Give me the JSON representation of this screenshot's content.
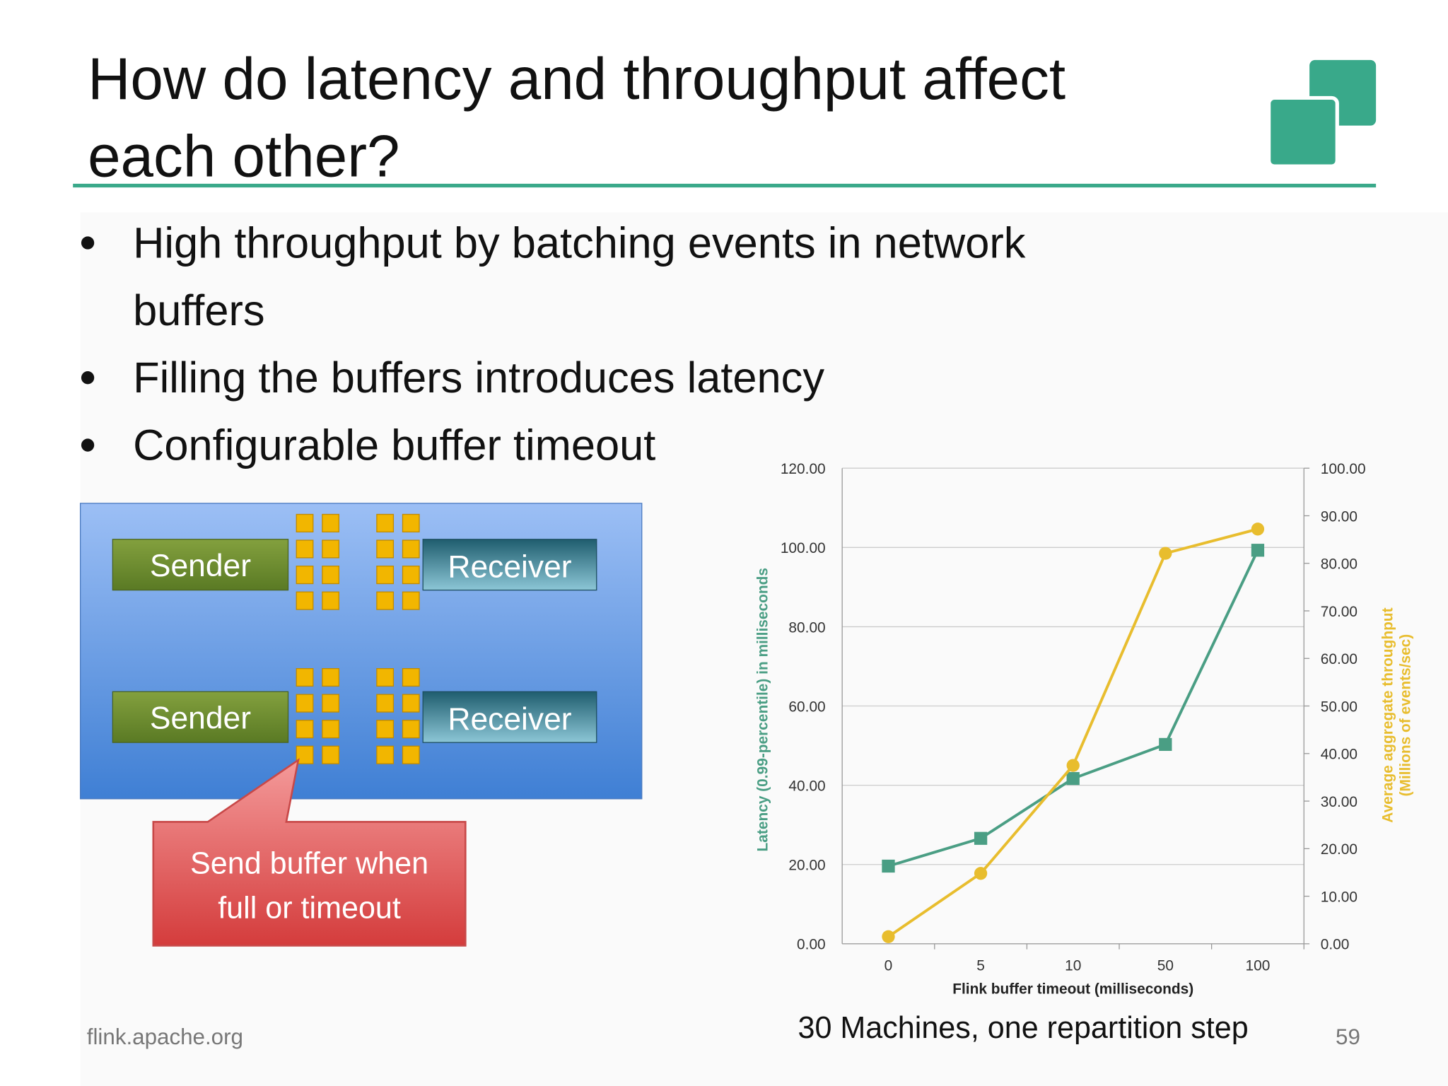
{
  "header": {
    "title": [
      "How do latency and throughput affect",
      "each other?"
    ]
  },
  "bullets": [
    [
      "High throughput by batching events in network",
      "buffers"
    ],
    [
      "Filling the buffers introduces latency"
    ],
    [
      "Configurable buffer timeout"
    ]
  ],
  "diagram": {
    "senders": [
      "Sender",
      "Sender"
    ],
    "receivers": [
      "Receiver",
      "Receiver"
    ],
    "callout": [
      "Send buffer when",
      "full or timeout"
    ]
  },
  "chart_data": {
    "type": "line",
    "categories": [
      "0",
      "5",
      "10",
      "50",
      "100"
    ],
    "x_label": "Flink buffer timeout (milliseconds)",
    "y_label": "Latency (0.99-percentile) in milliseconds",
    "y2_label": [
      "Average aggregate throughput",
      "(Millions of events/sec)"
    ],
    "ylim": [
      0,
      120
    ],
    "yticks": [
      {
        "value": 0,
        "label": "0.00"
      },
      {
        "value": 20,
        "label": "20.00"
      },
      {
        "value": 40,
        "label": "40.00"
      },
      {
        "value": 60,
        "label": "60.00"
      },
      {
        "value": 80,
        "label": "80.00"
      },
      {
        "value": 100,
        "label": "100.00"
      },
      {
        "value": 120,
        "label": "120.00"
      }
    ],
    "y2lim": [
      0,
      100
    ],
    "y2ticks": [
      {
        "value": 0,
        "label": "0.00"
      },
      {
        "value": 10,
        "label": "10.00"
      },
      {
        "value": 20,
        "label": "20.00"
      },
      {
        "value": 30,
        "label": "30.00"
      },
      {
        "value": 40,
        "label": "40.00"
      },
      {
        "value": 50,
        "label": "50.00"
      },
      {
        "value": 60,
        "label": "60.00"
      },
      {
        "value": 70,
        "label": "70.00"
      },
      {
        "value": 80,
        "label": "80.00"
      },
      {
        "value": 90,
        "label": "90.00"
      },
      {
        "value": 100,
        "label": "100.00"
      }
    ],
    "grid": true,
    "series": [
      {
        "color": "#4a9e84",
        "marker": "square",
        "values": [
          19.6,
          26.6,
          41.7,
          50.3,
          99.3
        ]
      },
      {
        "color": "#e8bd2e",
        "marker": "circle",
        "axis": "y2",
        "values": [
          1.5,
          14.8,
          37.5,
          82.1,
          87.2
        ]
      }
    ]
  },
  "caption": "30 Machines, one repartition step",
  "footer": {
    "source": "flink.apache.org",
    "page": "59"
  }
}
